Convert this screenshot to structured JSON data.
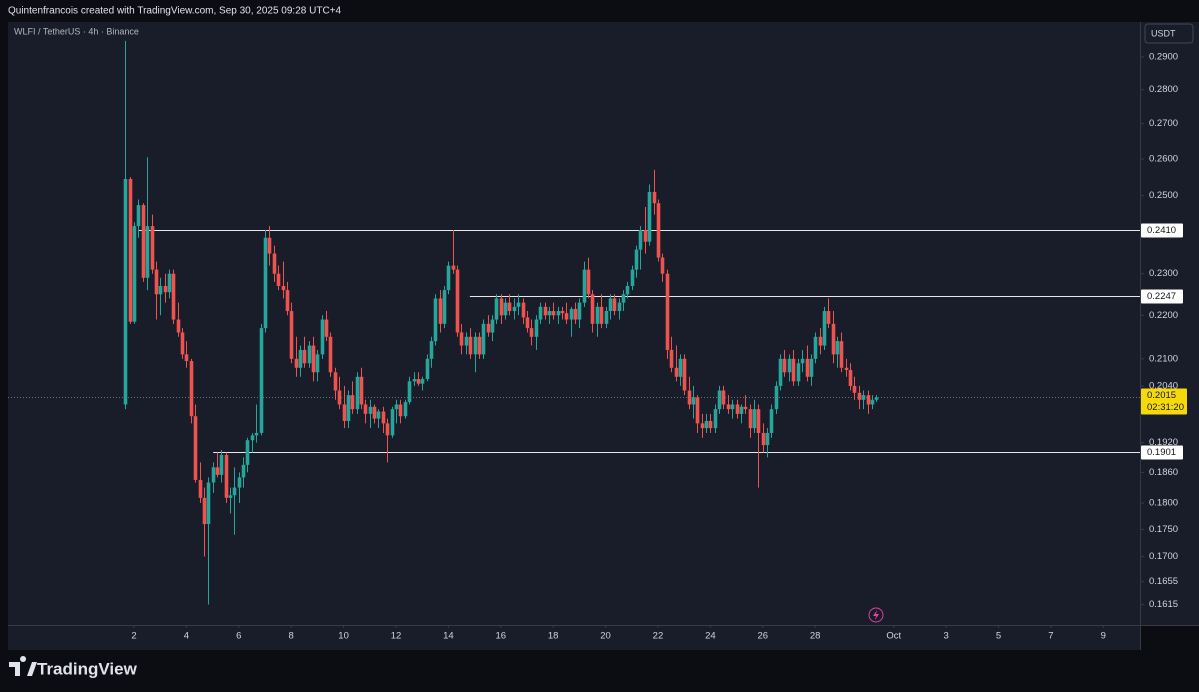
{
  "header": {
    "credit": "Quintenfrancois created with TradingView.com, Sep 30, 2025 09:28 UTC+4"
  },
  "footer": {
    "brand": "TradingView"
  },
  "chart_data": {
    "type": "candlestick",
    "title": "WLFI / TetherUS · 4h · Binance",
    "currency": "USDT",
    "log_scale": true,
    "grid": false,
    "colors": {
      "up": "#26a69a",
      "down": "#ef5350"
    },
    "ylim": [
      0.158,
      0.301
    ],
    "yticks": [
      {
        "value": 0.29,
        "label": "0.2900"
      },
      {
        "value": 0.28,
        "label": "0.2800"
      },
      {
        "value": 0.27,
        "label": "0.2700"
      },
      {
        "value": 0.26,
        "label": "0.2600"
      },
      {
        "value": 0.25,
        "label": "0.2500"
      },
      {
        "value": 0.23,
        "label": "0.2300"
      },
      {
        "value": 0.22,
        "label": "0.2200"
      },
      {
        "value": 0.21,
        "label": "0.2100"
      },
      {
        "value": 0.204,
        "label": "0.2040"
      },
      {
        "value": 0.192,
        "label": "0.1920"
      },
      {
        "value": 0.186,
        "label": "0.1860"
      },
      {
        "value": 0.18,
        "label": "0.1800"
      },
      {
        "value": 0.175,
        "label": "0.1750"
      },
      {
        "value": 0.17,
        "label": "0.1700"
      },
      {
        "value": 0.1655,
        "label": "0.1655"
      },
      {
        "value": 0.1615,
        "label": "0.1615"
      }
    ],
    "xlim": [
      -2.81,
      40.4
    ],
    "xticks": [
      2,
      4,
      6,
      8,
      10,
      12,
      14,
      16,
      18,
      20,
      22,
      24,
      26,
      28,
      {
        "value": 31,
        "label": "Oct"
      },
      {
        "value": 33,
        "label": "3"
      },
      {
        "value": 35,
        "label": "5"
      },
      {
        "value": 37,
        "label": "7"
      },
      {
        "value": 39,
        "label": "9"
      }
    ],
    "levels": [
      {
        "value": 0.241,
        "label": "0.2410",
        "x": 2.15
      },
      {
        "value": 0.2247,
        "label": "0.2247",
        "x": 14.82
      },
      {
        "value": 0.1901,
        "label": "0.1901",
        "x": 5.02
      }
    ],
    "last_price": {
      "value": 0.2015,
      "label": "0.2015",
      "countdown": "02:31:20"
    },
    "x": [
      1.67,
      1.83,
      2,
      2.17,
      2.33,
      2.5,
      2.67,
      2.83,
      3,
      3.17,
      3.33,
      3.5,
      3.67,
      3.83,
      4,
      4.17,
      4.33,
      4.5,
      4.67,
      4.83,
      5,
      5.17,
      5.33,
      5.5,
      5.67,
      5.83,
      6,
      6.17,
      6.33,
      6.5,
      6.67,
      6.83,
      7,
      7.17,
      7.33,
      7.5,
      7.67,
      7.83,
      8,
      8.17,
      8.33,
      8.5,
      8.67,
      8.83,
      9,
      9.17,
      9.33,
      9.5,
      9.67,
      9.83,
      10,
      10.17,
      10.33,
      10.5,
      10.67,
      10.83,
      11,
      11.17,
      11.33,
      11.5,
      11.67,
      11.83,
      12,
      12.17,
      12.33,
      12.5,
      12.67,
      12.83,
      13,
      13.17,
      13.33,
      13.5,
      13.67,
      13.83,
      14,
      14.17,
      14.33,
      14.5,
      14.67,
      14.83,
      15,
      15.17,
      15.33,
      15.5,
      15.67,
      15.83,
      16,
      16.17,
      16.33,
      16.5,
      16.67,
      16.83,
      17,
      17.17,
      17.33,
      17.5,
      17.67,
      17.83,
      18,
      18.17,
      18.33,
      18.5,
      18.67,
      18.83,
      19,
      19.17,
      19.33,
      19.5,
      19.67,
      19.83,
      20,
      20.17,
      20.33,
      20.5,
      20.67,
      20.83,
      21,
      21.17,
      21.33,
      21.5,
      21.67,
      21.83,
      22,
      22.17,
      22.33,
      22.5,
      22.67,
      22.83,
      23,
      23.17,
      23.33,
      23.5,
      23.67,
      23.83,
      24,
      24.17,
      24.33,
      24.5,
      24.67,
      24.83,
      25,
      25.17,
      25.33,
      25.5,
      25.67,
      25.83,
      26,
      26.17,
      26.33,
      26.5,
      26.67,
      26.83,
      27,
      27.17,
      27.33,
      27.5,
      27.67,
      27.83,
      28,
      28.17,
      28.33,
      28.5,
      28.67,
      28.83,
      29,
      29.17,
      29.33,
      29.5,
      29.67,
      29.83,
      30,
      30.17,
      30.33
    ],
    "ohlc": [
      [
        0.2,
        0.295,
        0.199,
        0.2545
      ],
      [
        0.2545,
        0.255,
        0.218,
        0.2185
      ],
      [
        0.2185,
        0.243,
        0.218,
        0.242
      ],
      [
        0.242,
        0.249,
        0.239,
        0.2475
      ],
      [
        0.2475,
        0.248,
        0.228,
        0.229
      ],
      [
        0.229,
        0.2605,
        0.226,
        0.242
      ],
      [
        0.242,
        0.245,
        0.23,
        0.231
      ],
      [
        0.231,
        0.233,
        0.219,
        0.225
      ],
      [
        0.225,
        0.229,
        0.22,
        0.227
      ],
      [
        0.227,
        0.23,
        0.223,
        0.2255
      ],
      [
        0.2255,
        0.231,
        0.224,
        0.23
      ],
      [
        0.23,
        0.231,
        0.218,
        0.219
      ],
      [
        0.219,
        0.223,
        0.215,
        0.216
      ],
      [
        0.216,
        0.217,
        0.21,
        0.211
      ],
      [
        0.211,
        0.214,
        0.208,
        0.2095
      ],
      [
        0.2095,
        0.21,
        0.196,
        0.1975
      ],
      [
        0.1975,
        0.2,
        0.184,
        0.1845
      ],
      [
        0.1845,
        0.188,
        0.18,
        0.181
      ],
      [
        0.181,
        0.183,
        0.17,
        0.176
      ],
      [
        0.176,
        0.185,
        0.1615,
        0.184
      ],
      [
        0.184,
        0.188,
        0.182,
        0.187
      ],
      [
        0.187,
        0.19,
        0.185,
        0.1855
      ],
      [
        0.1855,
        0.1905,
        0.184,
        0.1895
      ],
      [
        0.1895,
        0.19,
        0.18,
        0.181
      ],
      [
        0.181,
        0.183,
        0.178,
        0.1815
      ],
      [
        0.1815,
        0.187,
        0.174,
        0.183
      ],
      [
        0.183,
        0.186,
        0.18,
        0.185
      ],
      [
        0.185,
        0.189,
        0.183,
        0.1875
      ],
      [
        0.1875,
        0.193,
        0.186,
        0.1925
      ],
      [
        0.1925,
        0.194,
        0.19,
        0.1935
      ],
      [
        0.1935,
        0.2,
        0.192,
        0.194
      ],
      [
        0.194,
        0.218,
        0.1935,
        0.217
      ],
      [
        0.217,
        0.241,
        0.216,
        0.239
      ],
      [
        0.239,
        0.242,
        0.232,
        0.235
      ],
      [
        0.235,
        0.237,
        0.228,
        0.23
      ],
      [
        0.23,
        0.232,
        0.226,
        0.227
      ],
      [
        0.227,
        0.233,
        0.224,
        0.226
      ],
      [
        0.226,
        0.228,
        0.22,
        0.221
      ],
      [
        0.221,
        0.223,
        0.209,
        0.21
      ],
      [
        0.21,
        0.215,
        0.206,
        0.208
      ],
      [
        0.208,
        0.213,
        0.206,
        0.212
      ],
      [
        0.212,
        0.215,
        0.208,
        0.209
      ],
      [
        0.209,
        0.214,
        0.208,
        0.213
      ],
      [
        0.213,
        0.215,
        0.205,
        0.207
      ],
      [
        0.207,
        0.212,
        0.205,
        0.211
      ],
      [
        0.211,
        0.22,
        0.21,
        0.219
      ],
      [
        0.219,
        0.221,
        0.214,
        0.215
      ],
      [
        0.215,
        0.216,
        0.206,
        0.207
      ],
      [
        0.207,
        0.208,
        0.201,
        0.203
      ],
      [
        0.203,
        0.206,
        0.199,
        0.2
      ],
      [
        0.2,
        0.204,
        0.195,
        0.1965
      ],
      [
        0.1965,
        0.203,
        0.195,
        0.202
      ],
      [
        0.202,
        0.205,
        0.198,
        0.199
      ],
      [
        0.199,
        0.207,
        0.198,
        0.206
      ],
      [
        0.206,
        0.208,
        0.199,
        0.2
      ],
      [
        0.2,
        0.201,
        0.196,
        0.198
      ],
      [
        0.198,
        0.201,
        0.195,
        0.1995
      ],
      [
        0.1995,
        0.2,
        0.196,
        0.197
      ],
      [
        0.197,
        0.199,
        0.195,
        0.1985
      ],
      [
        0.1985,
        0.1995,
        0.194,
        0.196
      ],
      [
        0.196,
        0.197,
        0.188,
        0.1935
      ],
      [
        0.1935,
        0.1995,
        0.193,
        0.199
      ],
      [
        0.199,
        0.201,
        0.196,
        0.2
      ],
      [
        0.2,
        0.201,
        0.196,
        0.1975
      ],
      [
        0.1975,
        0.201,
        0.197,
        0.2005
      ],
      [
        0.2005,
        0.206,
        0.2,
        0.205
      ],
      [
        0.205,
        0.207,
        0.204,
        0.2055
      ],
      [
        0.2055,
        0.207,
        0.204,
        0.2045
      ],
      [
        0.2045,
        0.206,
        0.203,
        0.2055
      ],
      [
        0.2055,
        0.211,
        0.205,
        0.21
      ],
      [
        0.21,
        0.215,
        0.208,
        0.214
      ],
      [
        0.214,
        0.225,
        0.213,
        0.224
      ],
      [
        0.224,
        0.226,
        0.216,
        0.218
      ],
      [
        0.218,
        0.227,
        0.217,
        0.226
      ],
      [
        0.226,
        0.233,
        0.225,
        0.232
      ],
      [
        0.232,
        0.241,
        0.23,
        0.231
      ],
      [
        0.231,
        0.232,
        0.215,
        0.216
      ],
      [
        0.216,
        0.218,
        0.211,
        0.213
      ],
      [
        0.213,
        0.216,
        0.211,
        0.215
      ],
      [
        0.215,
        0.217,
        0.21,
        0.211
      ],
      [
        0.211,
        0.216,
        0.207,
        0.215
      ],
      [
        0.215,
        0.216,
        0.21,
        0.211
      ],
      [
        0.211,
        0.219,
        0.21,
        0.218
      ],
      [
        0.218,
        0.22,
        0.215,
        0.216
      ],
      [
        0.216,
        0.22,
        0.214,
        0.219
      ],
      [
        0.219,
        0.225,
        0.218,
        0.224
      ],
      [
        0.224,
        0.225,
        0.218,
        0.22
      ],
      [
        0.22,
        0.224,
        0.219,
        0.223
      ],
      [
        0.223,
        0.225,
        0.22,
        0.221
      ],
      [
        0.221,
        0.224,
        0.219,
        0.222
      ],
      [
        0.222,
        0.225,
        0.22,
        0.223
      ],
      [
        0.223,
        0.224,
        0.218,
        0.2195
      ],
      [
        0.2195,
        0.221,
        0.216,
        0.217
      ],
      [
        0.217,
        0.219,
        0.213,
        0.215
      ],
      [
        0.215,
        0.22,
        0.212,
        0.219
      ],
      [
        0.219,
        0.223,
        0.218,
        0.222
      ],
      [
        0.222,
        0.223,
        0.219,
        0.22
      ],
      [
        0.22,
        0.222,
        0.218,
        0.221
      ],
      [
        0.221,
        0.223,
        0.219,
        0.22
      ],
      [
        0.22,
        0.222,
        0.218,
        0.221
      ],
      [
        0.221,
        0.222,
        0.219,
        0.2205
      ],
      [
        0.2205,
        0.223,
        0.218,
        0.219
      ],
      [
        0.219,
        0.222,
        0.215,
        0.2215
      ],
      [
        0.2215,
        0.223,
        0.218,
        0.219
      ],
      [
        0.219,
        0.224,
        0.217,
        0.223
      ],
      [
        0.223,
        0.233,
        0.222,
        0.231
      ],
      [
        0.231,
        0.234,
        0.224,
        0.225
      ],
      [
        0.225,
        0.226,
        0.216,
        0.218
      ],
      [
        0.218,
        0.223,
        0.215,
        0.222
      ],
      [
        0.222,
        0.225,
        0.217,
        0.218
      ],
      [
        0.218,
        0.222,
        0.217,
        0.221
      ],
      [
        0.221,
        0.225,
        0.219,
        0.224
      ],
      [
        0.224,
        0.225,
        0.22,
        0.221
      ],
      [
        0.221,
        0.224,
        0.219,
        0.223
      ],
      [
        0.223,
        0.226,
        0.221,
        0.225
      ],
      [
        0.225,
        0.228,
        0.224,
        0.227
      ],
      [
        0.227,
        0.232,
        0.226,
        0.231
      ],
      [
        0.231,
        0.237,
        0.229,
        0.236
      ],
      [
        0.236,
        0.242,
        0.231,
        0.241
      ],
      [
        0.241,
        0.247,
        0.235,
        0.238
      ],
      [
        0.238,
        0.253,
        0.237,
        0.251
      ],
      [
        0.251,
        0.257,
        0.245,
        0.248
      ],
      [
        0.248,
        0.249,
        0.233,
        0.234
      ],
      [
        0.234,
        0.235,
        0.228,
        0.23
      ],
      [
        0.23,
        0.231,
        0.21,
        0.212
      ],
      [
        0.212,
        0.215,
        0.207,
        0.208
      ],
      [
        0.208,
        0.213,
        0.205,
        0.206
      ],
      [
        0.206,
        0.211,
        0.204,
        0.21
      ],
      [
        0.21,
        0.211,
        0.202,
        0.203
      ],
      [
        0.203,
        0.206,
        0.199,
        0.2
      ],
      [
        0.2,
        0.204,
        0.197,
        0.2015
      ],
      [
        0.2015,
        0.202,
        0.194,
        0.196
      ],
      [
        0.196,
        0.198,
        0.193,
        0.195
      ],
      [
        0.195,
        0.198,
        0.194,
        0.1965
      ],
      [
        0.1965,
        0.198,
        0.194,
        0.195
      ],
      [
        0.195,
        0.2,
        0.194,
        0.199
      ],
      [
        0.199,
        0.204,
        0.198,
        0.203
      ],
      [
        0.203,
        0.204,
        0.199,
        0.2
      ],
      [
        0.2,
        0.202,
        0.198,
        0.199
      ],
      [
        0.199,
        0.201,
        0.197,
        0.2
      ],
      [
        0.2,
        0.201,
        0.197,
        0.198
      ],
      [
        0.198,
        0.2,
        0.196,
        0.1995
      ],
      [
        0.1995,
        0.202,
        0.198,
        0.199
      ],
      [
        0.199,
        0.2,
        0.193,
        0.195
      ],
      [
        0.195,
        0.201,
        0.194,
        0.199
      ],
      [
        0.199,
        0.2,
        0.183,
        0.194
      ],
      [
        0.194,
        0.196,
        0.19,
        0.1915
      ],
      [
        0.1915,
        0.195,
        0.189,
        0.194
      ],
      [
        0.194,
        0.2,
        0.193,
        0.199
      ],
      [
        0.199,
        0.205,
        0.198,
        0.204
      ],
      [
        0.204,
        0.211,
        0.203,
        0.21
      ],
      [
        0.21,
        0.212,
        0.206,
        0.207
      ],
      [
        0.207,
        0.211,
        0.205,
        0.21
      ],
      [
        0.21,
        0.212,
        0.204,
        0.205
      ],
      [
        0.205,
        0.21,
        0.204,
        0.209
      ],
      [
        0.209,
        0.212,
        0.207,
        0.21
      ],
      [
        0.21,
        0.213,
        0.205,
        0.206
      ],
      [
        0.206,
        0.211,
        0.204,
        0.21
      ],
      [
        0.21,
        0.216,
        0.209,
        0.215
      ],
      [
        0.215,
        0.217,
        0.211,
        0.213
      ],
      [
        0.213,
        0.222,
        0.212,
        0.221
      ],
      [
        0.221,
        0.224,
        0.217,
        0.218
      ],
      [
        0.218,
        0.221,
        0.209,
        0.211
      ],
      [
        0.211,
        0.215,
        0.208,
        0.214
      ],
      [
        0.214,
        0.216,
        0.207,
        0.208
      ],
      [
        0.208,
        0.21,
        0.206,
        0.2075
      ],
      [
        0.2075,
        0.209,
        0.203,
        0.204
      ],
      [
        0.204,
        0.206,
        0.201,
        0.2025
      ],
      [
        0.2025,
        0.204,
        0.199,
        0.201
      ],
      [
        0.201,
        0.203,
        0.199,
        0.202
      ],
      [
        0.202,
        0.203,
        0.198,
        0.2
      ],
      [
        0.2,
        0.202,
        0.199,
        0.201
      ],
      [
        0.201,
        0.202,
        0.2005,
        0.2015
      ]
    ]
  }
}
